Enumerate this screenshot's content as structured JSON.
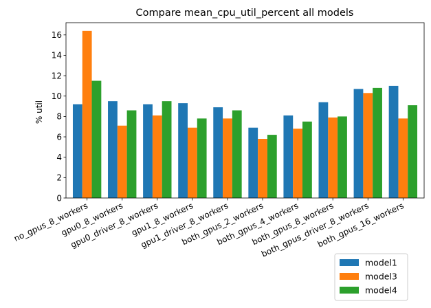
{
  "chart_data": {
    "type": "bar",
    "title": "Compare mean_cpu_util_percent all models",
    "xlabel": "",
    "ylabel": "% util",
    "ylim": [
      0,
      17.2
    ],
    "yticks": [
      0,
      2,
      4,
      6,
      8,
      10,
      12,
      14,
      16
    ],
    "categories": [
      "no_gpus_8_workers",
      "gpu0_8_workers",
      "gpu0_driver_8_workers",
      "gpu1_8_workers",
      "gpu1_driver_8_workers",
      "both_gpus_2_workers",
      "both_gpus_4_workers",
      "both_gpus_8_workers",
      "both_gpus_driver_8_workers",
      "both_gpus_16_workers"
    ],
    "series": [
      {
        "name": "model1",
        "color": "#1f77b4",
        "values": [
          9.2,
          9.5,
          9.2,
          9.3,
          8.9,
          6.9,
          8.1,
          9.4,
          10.7,
          11.0
        ]
      },
      {
        "name": "model3",
        "color": "#ff7f0e",
        "values": [
          16.4,
          7.1,
          8.1,
          6.9,
          7.8,
          5.8,
          6.8,
          7.9,
          10.3,
          7.8
        ]
      },
      {
        "name": "model4",
        "color": "#2ca02c",
        "values": [
          11.5,
          8.6,
          9.5,
          7.8,
          8.6,
          6.2,
          7.5,
          8.0,
          10.8,
          9.1
        ]
      }
    ],
    "grid": false,
    "legend_position": "bottom-right"
  }
}
